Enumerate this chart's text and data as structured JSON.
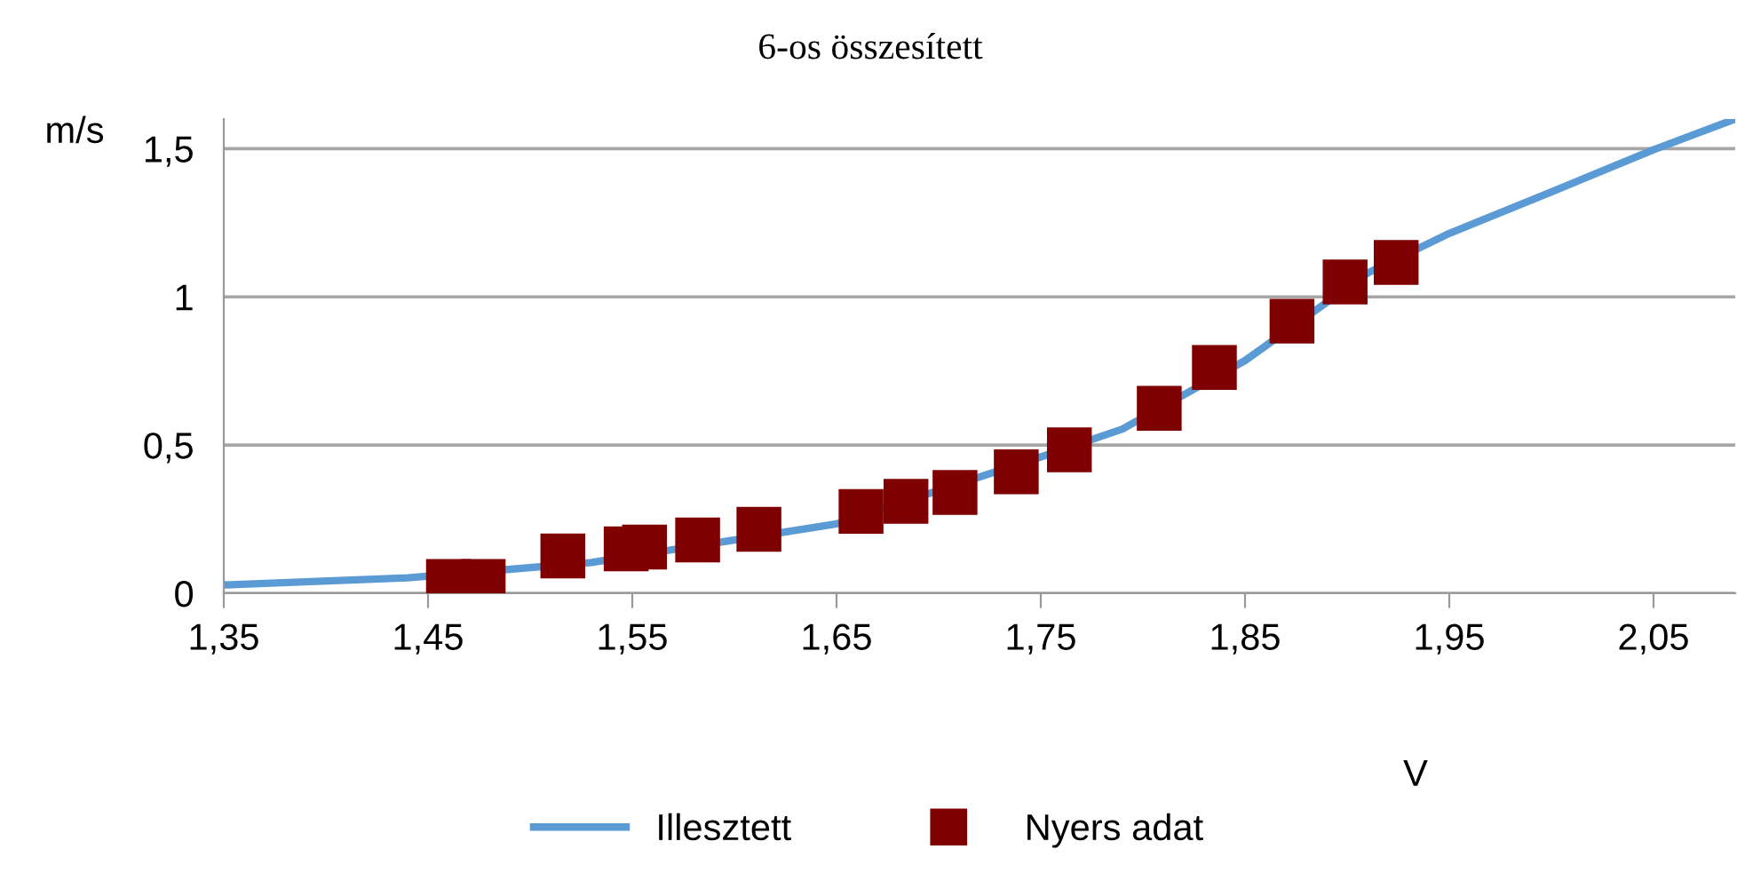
{
  "chart_data": {
    "type": "line",
    "title": "6-os összesített",
    "xlabel": "V",
    "ylabel": "m/s",
    "xlim": [
      1.35,
      2.09
    ],
    "ylim": [
      0,
      1.6
    ],
    "xticks": [
      {
        "value": 1.35,
        "label": "1,35"
      },
      {
        "value": 1.45,
        "label": "1,45"
      },
      {
        "value": 1.55,
        "label": "1,55"
      },
      {
        "value": 1.65,
        "label": "1,65"
      },
      {
        "value": 1.75,
        "label": "1,75"
      },
      {
        "value": 1.85,
        "label": "1,85"
      },
      {
        "value": 1.95,
        "label": "1,95"
      },
      {
        "value": 2.05,
        "label": "2,05"
      }
    ],
    "yticks": [
      0,
      {
        "value": 0.5,
        "label": "0,5"
      },
      1,
      {
        "value": 1.5,
        "label": "1,5"
      }
    ],
    "grid": "y",
    "legend": "bottom",
    "series": [
      {
        "name": "Illesztett",
        "color": "#5b9bd5",
        "marker": "none",
        "line_style": "solid",
        "x": [
          1.35,
          1.44,
          1.53,
          1.65,
          1.75,
          1.79,
          1.85,
          1.91,
          1.95,
          2.0,
          2.05,
          2.09
        ],
        "values": [
          0.028,
          0.052,
          0.104,
          0.234,
          0.46,
          0.554,
          0.785,
          1.08,
          1.214,
          1.354,
          1.496,
          1.6
        ]
      },
      {
        "name": "Nyers adat",
        "type": "scatter",
        "color": "#7f0000",
        "marker": "square",
        "x": [
          1.46,
          1.477,
          1.516,
          1.547,
          1.556,
          1.582,
          1.612,
          1.662,
          1.684,
          1.708,
          1.738,
          1.764,
          1.808,
          1.835,
          1.873,
          1.899,
          1.924
        ],
        "values": [
          0.04,
          0.04,
          0.126,
          0.15,
          0.156,
          0.18,
          0.216,
          0.276,
          0.31,
          0.34,
          0.41,
          0.484,
          0.624,
          0.762,
          0.918,
          1.05,
          1.116
        ]
      }
    ]
  }
}
